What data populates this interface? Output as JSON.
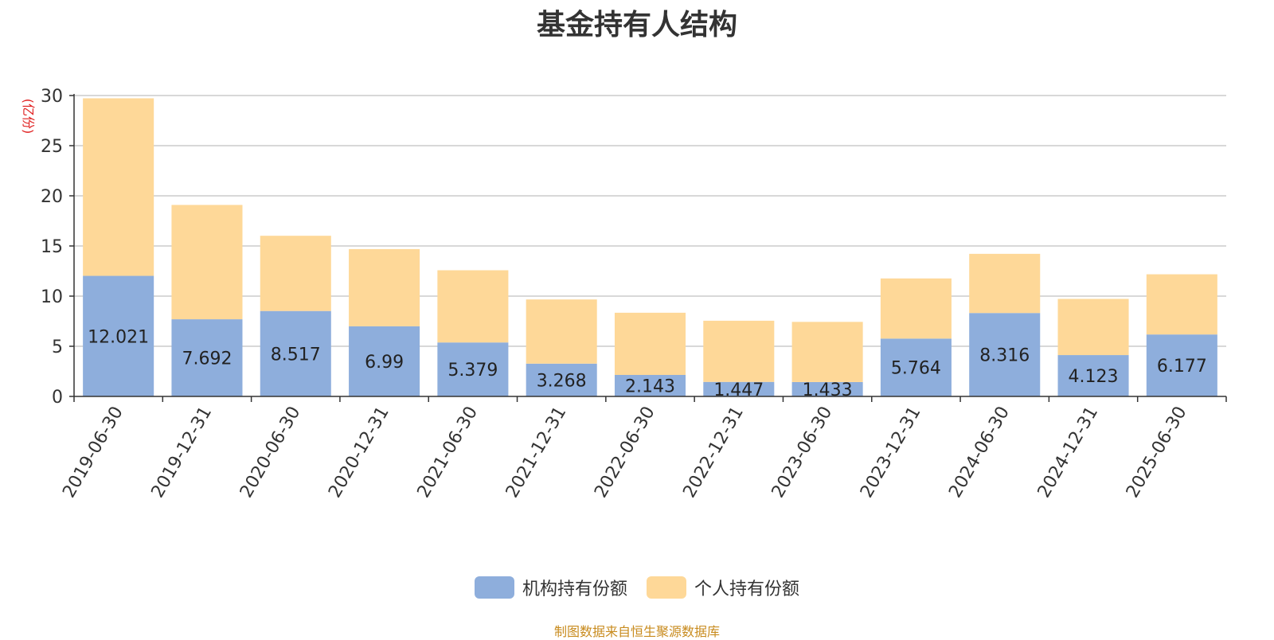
{
  "title": "基金持有人结构",
  "source": "制图数据来自恒生聚源数据库",
  "colors": {
    "institutional": "#8eaedc",
    "individual": "#fed898",
    "unit_label": "#e02020",
    "grid": "#cccccc",
    "axis": "#333333"
  },
  "chart_data": {
    "type": "bar",
    "stacked": true,
    "title": "基金持有人结构",
    "ylabel": "(亿份)",
    "ylim": [
      0,
      30
    ],
    "yticks": [
      0,
      5,
      10,
      15,
      20,
      25,
      30
    ],
    "grid": true,
    "legend_position": "bottom-center",
    "categories": [
      "2019-06-30",
      "2019-12-31",
      "2020-06-30",
      "2020-12-31",
      "2021-06-30",
      "2021-12-31",
      "2022-06-30",
      "2022-12-31",
      "2023-06-30",
      "2023-12-31",
      "2024-06-30",
      "2024-12-31",
      "2025-06-30"
    ],
    "series": [
      {
        "name": "机构持有份额",
        "values": [
          12.021,
          7.692,
          8.517,
          6.99,
          5.379,
          3.268,
          2.143,
          1.447,
          1.433,
          5.764,
          8.316,
          4.123,
          6.177
        ],
        "labels": [
          "12.021",
          "7.692",
          "8.517",
          "6.99",
          "5.379",
          "3.268",
          "2.143",
          "1.447",
          "1.433",
          "5.764",
          "8.316",
          "4.123",
          "6.177"
        ]
      },
      {
        "name": "个人持有份额",
        "values": [
          17.7,
          11.4,
          7.5,
          7.7,
          7.2,
          6.4,
          6.2,
          6.1,
          6.0,
          6.0,
          5.9,
          5.6,
          6.0
        ]
      }
    ]
  }
}
